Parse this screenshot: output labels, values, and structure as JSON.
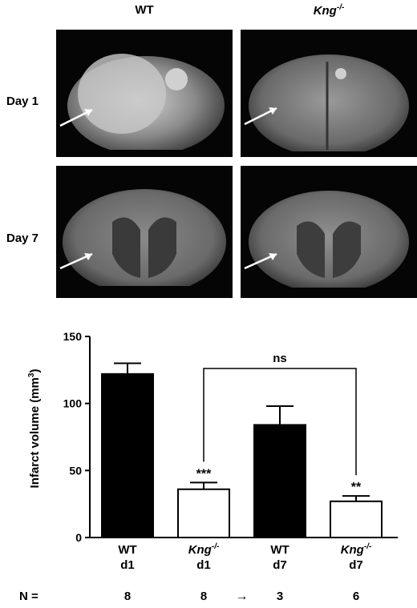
{
  "figure": {
    "col_headers": {
      "wt": "WT",
      "kng_base": "Kng",
      "kng_sup": "-/-"
    },
    "row_labels": {
      "day1": "Day 1",
      "day7": "Day 7"
    }
  },
  "chart_data": {
    "type": "bar",
    "categories": [
      {
        "line1": "WT",
        "line2": "d1"
      },
      {
        "line1_base": "Kng",
        "line1_sup": "-/-",
        "line2": "d1"
      },
      {
        "line1": "WT",
        "line2": "d7"
      },
      {
        "line1_base": "Kng",
        "line1_sup": "-/-",
        "line2": "d7"
      }
    ],
    "values": [
      122,
      36,
      84,
      27
    ],
    "errors": [
      8,
      5,
      14,
      4
    ],
    "fills": [
      "#000000",
      "#ffffff",
      "#000000",
      "#ffffff"
    ],
    "ylabel_base": "Infarct volume (mm",
    "ylabel_sup": "3",
    "ylabel_end": ")",
    "ylim": [
      0,
      150
    ],
    "yticks": [
      "0",
      "50",
      "100",
      "150"
    ],
    "significance": [
      "",
      "***",
      "",
      "**"
    ],
    "bracket_label": "ns",
    "n_row": {
      "label": "N =",
      "values": [
        "8",
        "8",
        "3",
        "6"
      ],
      "arrow": "→"
    }
  }
}
